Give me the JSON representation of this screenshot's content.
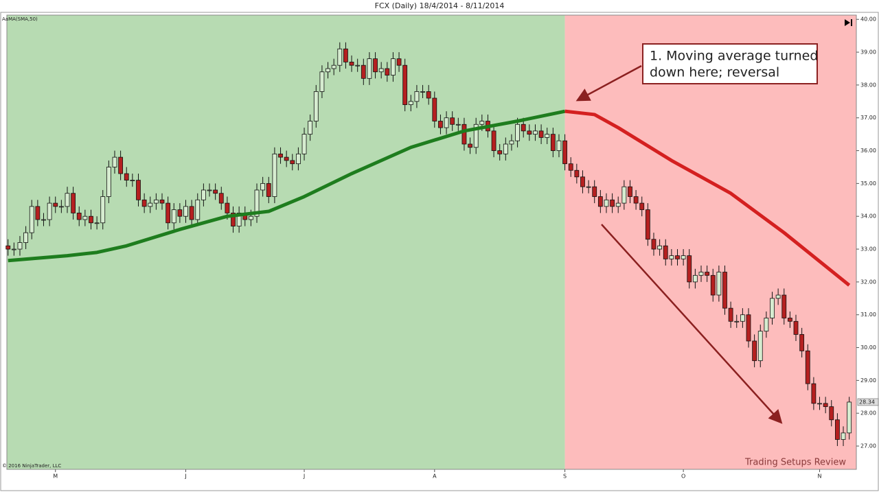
{
  "chart_data": {
    "type": "candlestick",
    "title": "FCX (Daily)  18/4/2014 - 8/11/2014",
    "indicator_label": "AaMA(SMA,50)",
    "copyright": "© 2016 NinjaTrader, LLC",
    "watermark": "Trading Setups Review",
    "annotation": [
      "1. Moving average turned",
      "down here; reversal"
    ],
    "up_color": "#d6ecd0",
    "down_color": "#b52020",
    "bull_zone_color": "#b7dbb2",
    "bear_zone_color": "#fdbcbc",
    "ylim": [
      26.29,
      40.13
    ],
    "xlim": [
      -0.2,
      143.2
    ],
    "yticks": [
      {
        "value": 27,
        "label": "27.00"
      },
      {
        "value": 28,
        "label": "28.00"
      },
      {
        "value": 29,
        "label": "29.00"
      },
      {
        "value": 30,
        "label": "30.00"
      },
      {
        "value": 31,
        "label": "31.00"
      },
      {
        "value": 32,
        "label": "32.00"
      },
      {
        "value": 33,
        "label": "33.00"
      },
      {
        "value": 34,
        "label": "34.00"
      },
      {
        "value": 35,
        "label": "35.00"
      },
      {
        "value": 36,
        "label": "36.00"
      },
      {
        "value": 37,
        "label": "37.00"
      },
      {
        "value": 38,
        "label": "38.00"
      },
      {
        "value": 39,
        "label": "39.00"
      },
      {
        "value": 40,
        "label": "40.00"
      }
    ],
    "xticks": [
      {
        "value": 8,
        "label": "M"
      },
      {
        "value": 30,
        "label": "J"
      },
      {
        "value": 50,
        "label": "J"
      },
      {
        "value": 72,
        "label": "A"
      },
      {
        "value": 94,
        "label": "S"
      },
      {
        "value": 114,
        "label": "O"
      },
      {
        "value": 137,
        "label": "N"
      }
    ],
    "open": [
      33.1,
      33.0,
      33.0,
      33.2,
      33.5,
      34.3,
      33.9,
      33.9,
      34.4,
      34.3,
      34.3,
      34.7,
      34.1,
      33.9,
      34.0,
      33.8,
      33.8,
      34.6,
      35.5,
      35.8,
      35.3,
      35.1,
      35.1,
      34.5,
      34.3,
      34.4,
      34.5,
      34.4,
      33.8,
      34.2,
      34.0,
      34.3,
      33.9,
      34.5,
      34.8,
      34.8,
      34.7,
      34.4,
      34.1,
      33.7,
      34.1,
      33.9,
      34.0,
      34.8,
      35.0,
      34.6,
      35.9,
      35.8,
      35.7,
      35.6,
      35.9,
      36.5,
      36.9,
      37.8,
      38.4,
      38.5,
      38.6,
      39.1,
      38.7,
      38.6,
      38.6,
      38.2,
      38.8,
      38.4,
      38.5,
      38.3,
      38.8,
      38.6,
      37.4,
      37.5,
      37.8,
      37.8,
      37.6,
      36.9,
      36.7,
      37.0,
      36.8,
      36.8,
      36.2,
      36.1,
      36.8,
      36.9,
      36.6,
      36.0,
      35.9,
      36.2,
      36.3,
      36.8,
      36.6,
      36.5,
      36.6,
      36.4,
      36.5,
      36.0,
      36.3,
      35.6,
      35.4,
      35.2,
      34.9,
      34.9,
      34.6,
      34.3,
      34.5,
      34.3,
      34.4,
      34.9,
      34.6,
      34.4,
      34.2,
      33.3,
      33.0,
      33.1,
      32.7,
      32.8,
      32.7,
      32.8,
      32.0,
      32.2,
      32.3,
      32.2,
      31.6,
      32.3,
      31.2,
      30.8,
      30.8,
      31.0,
      30.2,
      29.6,
      30.5,
      30.9,
      31.5,
      31.6,
      30.9,
      30.8,
      30.4,
      29.9,
      28.9,
      28.3,
      28.3,
      28.2,
      27.8,
      27.2,
      27.4
    ],
    "high": [
      33.3,
      33.2,
      33.4,
      33.7,
      34.5,
      34.5,
      34.1,
      34.6,
      34.6,
      34.5,
      34.9,
      34.9,
      34.3,
      34.2,
      34.2,
      34.0,
      34.8,
      35.7,
      36.0,
      36.0,
      35.5,
      35.3,
      35.3,
      34.7,
      34.6,
      34.7,
      34.7,
      34.6,
      34.4,
      34.4,
      34.5,
      34.5,
      34.7,
      35.0,
      35.0,
      35.0,
      34.9,
      34.6,
      34.3,
      34.3,
      34.3,
      34.2,
      35.0,
      35.2,
      35.2,
      36.1,
      36.1,
      36.0,
      35.9,
      36.1,
      36.7,
      37.1,
      38.0,
      38.6,
      38.7,
      38.8,
      39.3,
      39.3,
      38.9,
      38.8,
      38.8,
      39.0,
      39.0,
      38.7,
      38.7,
      39.0,
      39.0,
      38.8,
      37.7,
      38.0,
      38.0,
      38.0,
      37.8,
      37.1,
      37.2,
      37.2,
      37.0,
      37.0,
      36.4,
      37.0,
      37.1,
      37.1,
      36.8,
      36.2,
      36.4,
      36.5,
      37.0,
      37.0,
      36.8,
      36.8,
      36.8,
      36.7,
      36.7,
      36.5,
      36.5,
      35.8,
      35.6,
      35.4,
      35.1,
      35.1,
      34.8,
      34.7,
      34.7,
      34.6,
      35.1,
      35.1,
      34.8,
      34.6,
      34.4,
      33.5,
      33.3,
      33.3,
      33.0,
      33.0,
      33.0,
      33.0,
      32.4,
      32.5,
      32.5,
      32.4,
      32.5,
      32.5,
      31.4,
      31.0,
      31.2,
      31.2,
      30.4,
      30.7,
      31.1,
      31.7,
      31.8,
      31.8,
      31.1,
      31.0,
      30.6,
      30.1,
      29.1,
      28.5,
      28.5,
      28.4,
      28.0,
      27.6,
      28.5
    ],
    "low": [
      32.8,
      32.8,
      32.8,
      33.0,
      33.3,
      33.7,
      33.7,
      33.7,
      34.1,
      34.1,
      34.1,
      33.9,
      33.7,
      33.7,
      33.6,
      33.6,
      33.6,
      34.4,
      35.3,
      35.1,
      34.9,
      34.9,
      34.3,
      34.1,
      34.1,
      34.2,
      34.2,
      33.6,
      33.6,
      33.8,
      33.8,
      33.7,
      33.7,
      34.3,
      34.6,
      34.5,
      34.2,
      33.9,
      33.5,
      33.5,
      33.7,
      33.7,
      33.8,
      34.6,
      34.4,
      34.4,
      35.6,
      35.5,
      35.4,
      35.4,
      35.7,
      36.3,
      36.7,
      37.6,
      38.2,
      38.3,
      38.4,
      38.5,
      38.4,
      38.4,
      38.0,
      38.0,
      38.2,
      38.2,
      38.1,
      38.1,
      38.4,
      37.2,
      37.2,
      37.3,
      37.6,
      37.4,
      36.7,
      36.5,
      36.5,
      36.6,
      36.6,
      36.0,
      35.9,
      35.9,
      36.6,
      36.4,
      35.8,
      35.7,
      35.7,
      36.0,
      36.1,
      36.4,
      36.3,
      36.3,
      36.2,
      36.2,
      35.8,
      35.8,
      35.4,
      35.2,
      35.0,
      34.7,
      34.7,
      34.4,
      34.1,
      34.1,
      34.1,
      34.1,
      34.2,
      34.4,
      34.2,
      34.0,
      33.1,
      32.8,
      32.8,
      32.5,
      32.5,
      32.5,
      32.5,
      31.8,
      31.8,
      32.0,
      32.0,
      31.4,
      31.4,
      31.0,
      30.6,
      30.6,
      30.6,
      30.0,
      29.4,
      29.4,
      30.3,
      30.7,
      31.3,
      30.7,
      30.6,
      30.2,
      29.7,
      28.7,
      28.1,
      28.1,
      28.0,
      27.6,
      27.0,
      27.0,
      27.2
    ],
    "close": [
      33.0,
      33.0,
      33.2,
      33.5,
      34.3,
      33.9,
      33.9,
      34.4,
      34.3,
      34.3,
      34.7,
      34.1,
      33.9,
      34.0,
      33.8,
      33.8,
      34.6,
      35.5,
      35.8,
      35.3,
      35.1,
      35.1,
      34.5,
      34.3,
      34.4,
      34.5,
      34.4,
      33.8,
      34.2,
      34.0,
      34.3,
      33.9,
      34.5,
      34.8,
      34.8,
      34.7,
      34.4,
      34.1,
      33.7,
      34.1,
      33.9,
      34.0,
      34.8,
      35.0,
      34.6,
      35.9,
      35.8,
      35.7,
      35.6,
      35.9,
      36.5,
      36.9,
      37.8,
      38.4,
      38.5,
      38.6,
      39.1,
      38.7,
      38.6,
      38.6,
      38.2,
      38.8,
      38.4,
      38.5,
      38.3,
      38.8,
      38.6,
      37.4,
      37.5,
      37.8,
      37.8,
      37.6,
      36.9,
      36.7,
      37.0,
      36.8,
      36.8,
      36.2,
      36.1,
      36.8,
      36.9,
      36.6,
      36.0,
      35.9,
      36.2,
      36.3,
      36.8,
      36.6,
      36.5,
      36.6,
      36.4,
      36.5,
      36.0,
      36.3,
      35.6,
      35.4,
      35.2,
      34.9,
      34.9,
      34.6,
      34.3,
      34.5,
      34.3,
      34.4,
      34.9,
      34.6,
      34.4,
      34.2,
      33.3,
      33.0,
      33.1,
      32.7,
      32.8,
      32.7,
      32.8,
      32.0,
      32.2,
      32.3,
      32.2,
      31.6,
      32.3,
      31.2,
      30.8,
      30.8,
      31.0,
      30.2,
      29.6,
      30.5,
      30.9,
      31.5,
      31.6,
      30.9,
      30.8,
      30.4,
      29.9,
      28.9,
      28.3,
      28.3,
      28.2,
      27.8,
      27.2,
      27.4,
      28.34
    ],
    "series": [
      {
        "color": "#1e7d1e",
        "x": [
          0,
          10,
          15,
          20,
          29,
          37,
          44,
          50,
          58,
          68,
          77,
          86,
          94
        ],
        "values": [
          32.65,
          32.8,
          32.9,
          33.1,
          33.6,
          34.0,
          34.15,
          34.6,
          35.3,
          36.1,
          36.6,
          36.9,
          37.2
        ]
      },
      {
        "color": "#d42020",
        "x": [
          94,
          99,
          103,
          112,
          122,
          131,
          142
        ],
        "values": [
          37.2,
          37.1,
          36.7,
          35.7,
          34.7,
          33.5,
          31.9
        ]
      }
    ]
  }
}
